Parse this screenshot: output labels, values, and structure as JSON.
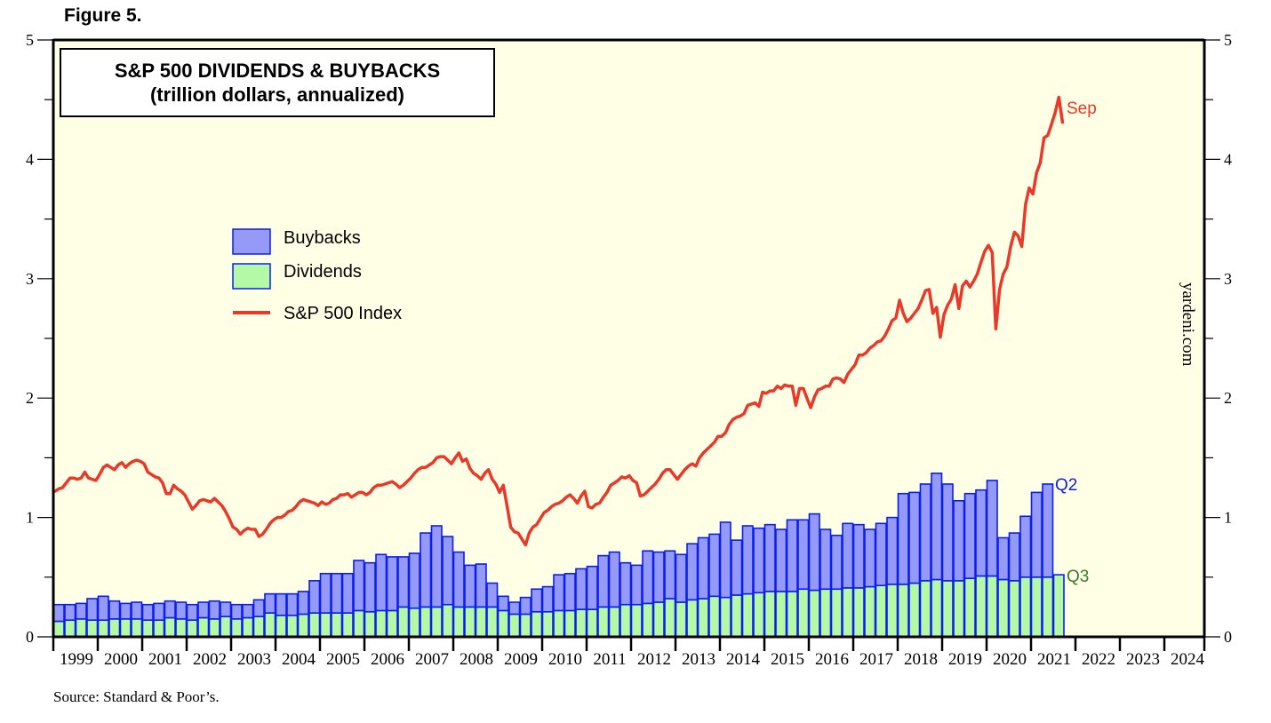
{
  "figure_label": "Figure 5.",
  "source": "Source: Standard & Poor’s.",
  "watermark": "yardeni.com",
  "colors": {
    "plot_bg": "#ffffe6",
    "buybacks_fill": "#9599f7",
    "dividends_fill": "#b3f9a6",
    "bar_stroke": "#0a1ef0",
    "sp500_line": "#e8392a",
    "q2_label": "#1020e0",
    "q3_label": "#3a7a2a"
  },
  "chart_data": {
    "type": "bar",
    "title": "S&P 500 DIVIDENDS & BUYBACKS",
    "subtitle": "(trillion dollars, annualized)",
    "xlabel": "",
    "ylabel_left": "",
    "ylabel_right": "",
    "ylim": [
      0,
      5
    ],
    "y_ticks": [
      0,
      1,
      2,
      3,
      4,
      5
    ],
    "x_years": [
      "1999",
      "2000",
      "2001",
      "2002",
      "2003",
      "2004",
      "2005",
      "2006",
      "2007",
      "2008",
      "2009",
      "2010",
      "2011",
      "2012",
      "2013",
      "2014",
      "2015",
      "2016",
      "2017",
      "2018",
      "2019",
      "2020",
      "2021",
      "2022",
      "2023",
      "2024"
    ],
    "grid": false,
    "legend_position": "upper-left",
    "legend": [
      {
        "name": "Buybacks",
        "kind": "bar"
      },
      {
        "name": "Dividends",
        "kind": "bar"
      },
      {
        "name": "S&P 500 Index",
        "kind": "line"
      }
    ],
    "annotations": [
      {
        "text": "Sep",
        "series": "S&P 500 Index"
      },
      {
        "text": "Q2",
        "series": "Buybacks"
      },
      {
        "text": "Q3",
        "series": "Dividends"
      }
    ],
    "stacked": true,
    "start_quarter": "1999Q1",
    "series": [
      {
        "name": "Dividends",
        "frequency": "quarterly",
        "values": [
          0.13,
          0.14,
          0.15,
          0.14,
          0.14,
          0.15,
          0.15,
          0.15,
          0.14,
          0.14,
          0.16,
          0.15,
          0.14,
          0.16,
          0.15,
          0.17,
          0.15,
          0.16,
          0.17,
          0.2,
          0.18,
          0.18,
          0.19,
          0.2,
          0.2,
          0.2,
          0.2,
          0.22,
          0.21,
          0.22,
          0.22,
          0.25,
          0.24,
          0.25,
          0.25,
          0.27,
          0.25,
          0.25,
          0.25,
          0.25,
          0.22,
          0.19,
          0.19,
          0.21,
          0.21,
          0.22,
          0.22,
          0.23,
          0.23,
          0.25,
          0.25,
          0.27,
          0.27,
          0.28,
          0.29,
          0.32,
          0.29,
          0.31,
          0.32,
          0.34,
          0.33,
          0.35,
          0.36,
          0.37,
          0.38,
          0.38,
          0.38,
          0.4,
          0.39,
          0.4,
          0.4,
          0.41,
          0.41,
          0.42,
          0.43,
          0.44,
          0.44,
          0.45,
          0.47,
          0.48,
          0.47,
          0.47,
          0.49,
          0.51,
          0.51,
          0.48,
          0.47,
          0.5,
          0.5,
          0.5,
          0.52
        ]
      },
      {
        "name": "Buybacks",
        "frequency": "quarterly",
        "values": [
          0.14,
          0.13,
          0.13,
          0.18,
          0.2,
          0.15,
          0.13,
          0.14,
          0.13,
          0.14,
          0.14,
          0.14,
          0.13,
          0.13,
          0.15,
          0.12,
          0.12,
          0.11,
          0.14,
          0.16,
          0.18,
          0.18,
          0.19,
          0.27,
          0.33,
          0.33,
          0.33,
          0.42,
          0.41,
          0.47,
          0.45,
          0.42,
          0.46,
          0.62,
          0.68,
          0.57,
          0.46,
          0.35,
          0.36,
          0.2,
          0.12,
          0.1,
          0.14,
          0.19,
          0.21,
          0.3,
          0.31,
          0.34,
          0.36,
          0.43,
          0.46,
          0.35,
          0.33,
          0.44,
          0.42,
          0.4,
          0.4,
          0.47,
          0.51,
          0.52,
          0.63,
          0.46,
          0.57,
          0.54,
          0.56,
          0.52,
          0.6,
          0.58,
          0.64,
          0.5,
          0.45,
          0.54,
          0.53,
          0.48,
          0.52,
          0.56,
          0.76,
          0.76,
          0.81,
          0.89,
          0.81,
          0.67,
          0.71,
          0.72,
          0.8,
          0.35,
          0.4,
          0.51,
          0.71,
          0.78
        ]
      },
      {
        "name": "S&P 500 Index",
        "frequency": "monthly",
        "unit": "thousands",
        "start_month": "1999-01",
        "values": [
          1.22,
          1.24,
          1.25,
          1.29,
          1.33,
          1.33,
          1.32,
          1.33,
          1.38,
          1.33,
          1.32,
          1.31,
          1.36,
          1.42,
          1.44,
          1.42,
          1.4,
          1.44,
          1.46,
          1.42,
          1.45,
          1.47,
          1.48,
          1.47,
          1.45,
          1.38,
          1.36,
          1.34,
          1.33,
          1.29,
          1.2,
          1.2,
          1.27,
          1.24,
          1.22,
          1.19,
          1.13,
          1.07,
          1.1,
          1.14,
          1.15,
          1.14,
          1.13,
          1.16,
          1.13,
          1.1,
          1.05,
          0.99,
          0.92,
          0.9,
          0.86,
          0.89,
          0.91,
          0.9,
          0.9,
          0.84,
          0.86,
          0.9,
          0.95,
          0.98,
          1.0,
          1.0,
          1.02,
          1.05,
          1.06,
          1.09,
          1.13,
          1.15,
          1.14,
          1.13,
          1.12,
          1.1,
          1.13,
          1.11,
          1.12,
          1.15,
          1.16,
          1.19,
          1.19,
          1.2,
          1.17,
          1.19,
          1.21,
          1.21,
          1.19,
          1.21,
          1.25,
          1.27,
          1.27,
          1.28,
          1.29,
          1.3,
          1.28,
          1.25,
          1.27,
          1.3,
          1.33,
          1.37,
          1.4,
          1.42,
          1.42,
          1.44,
          1.46,
          1.5,
          1.51,
          1.51,
          1.48,
          1.45,
          1.5,
          1.54,
          1.47,
          1.49,
          1.41,
          1.37,
          1.35,
          1.32,
          1.37,
          1.4,
          1.32,
          1.28,
          1.21,
          1.27,
          1.1,
          0.92,
          0.88,
          0.87,
          0.82,
          0.77,
          0.87,
          0.92,
          0.94,
          0.99,
          1.04,
          1.06,
          1.09,
          1.11,
          1.12,
          1.14,
          1.17,
          1.19,
          1.16,
          1.12,
          1.18,
          1.22,
          1.09,
          1.08,
          1.11,
          1.12,
          1.17,
          1.21,
          1.27,
          1.29,
          1.31,
          1.34,
          1.33,
          1.35,
          1.31,
          1.29,
          1.18,
          1.19,
          1.22,
          1.25,
          1.28,
          1.32,
          1.37,
          1.4,
          1.4,
          1.36,
          1.32,
          1.36,
          1.4,
          1.43,
          1.45,
          1.43,
          1.5,
          1.54,
          1.57,
          1.6,
          1.63,
          1.68,
          1.68,
          1.71,
          1.78,
          1.82,
          1.84,
          1.85,
          1.87,
          1.94,
          1.95,
          1.96,
          1.93,
          2.05,
          2.04,
          2.06,
          2.06,
          2.1,
          2.08,
          2.11,
          2.1,
          2.1,
          1.94,
          2.08,
          2.08,
          2.0,
          1.92,
          2.01,
          2.07,
          2.08,
          2.1,
          2.1,
          2.16,
          2.17,
          2.16,
          2.13,
          2.2,
          2.24,
          2.28,
          2.36,
          2.36,
          2.38,
          2.42,
          2.44,
          2.47,
          2.48,
          2.52,
          2.58,
          2.65,
          2.67,
          2.82,
          2.71,
          2.64,
          2.67,
          2.71,
          2.75,
          2.82,
          2.9,
          2.91,
          2.71,
          2.76,
          2.51,
          2.7,
          2.78,
          2.83,
          2.95,
          2.75,
          2.94,
          2.98,
          2.93,
          2.98,
          3.04,
          3.14,
          3.23,
          3.28,
          3.22,
          2.58,
          2.91,
          3.04,
          3.1,
          3.27,
          3.39,
          3.36,
          3.27,
          3.62,
          3.76,
          3.71,
          3.89,
          3.97,
          4.18,
          4.2,
          4.29,
          4.39,
          4.52,
          4.31
        ]
      }
    ]
  }
}
